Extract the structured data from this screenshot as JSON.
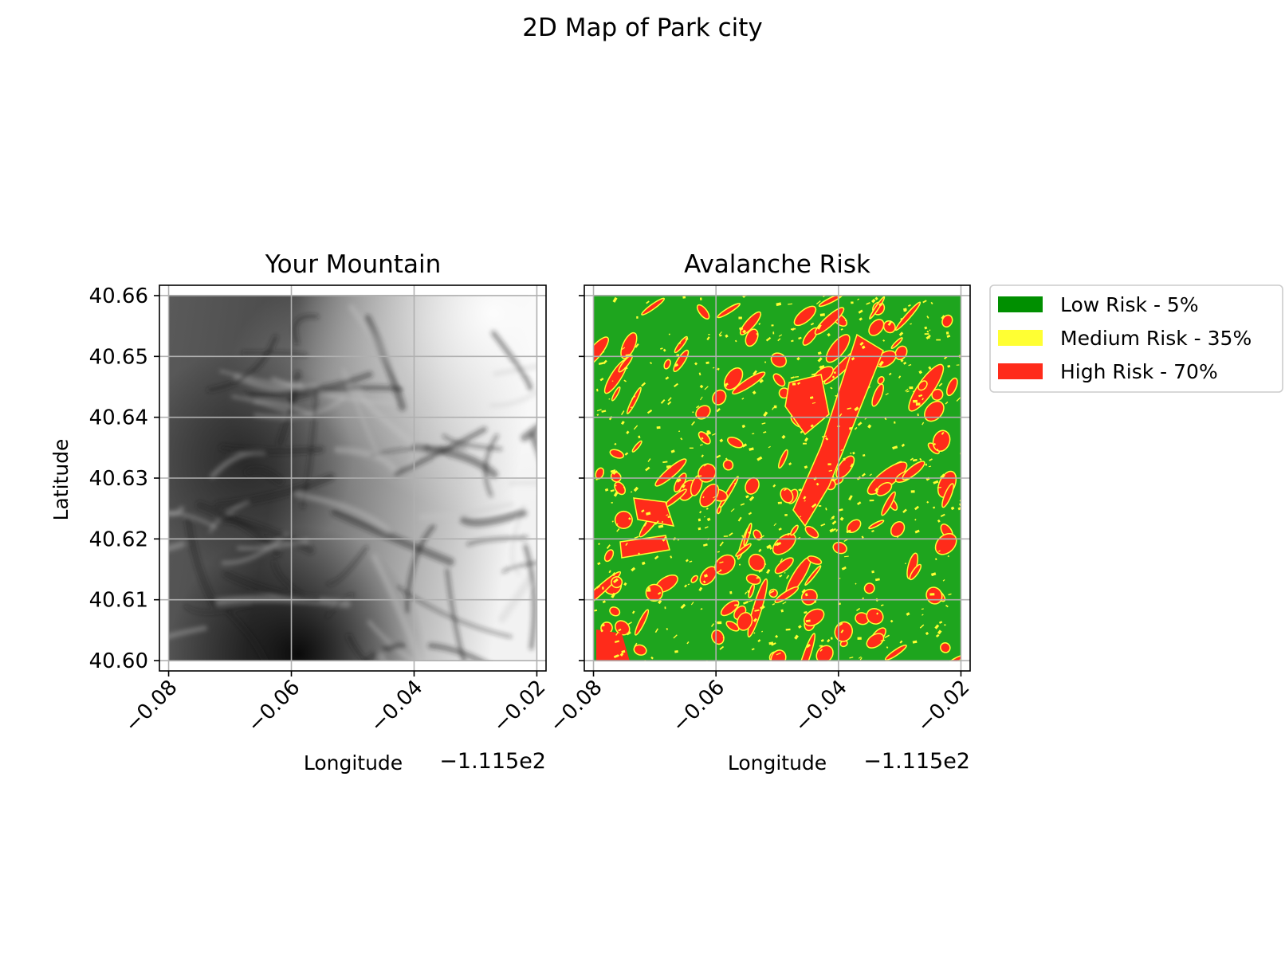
{
  "figure": {
    "suptitle": "2D Map of Park city"
  },
  "chart_data": [
    {
      "type": "heatmap",
      "title": "Your Mountain",
      "xlabel": "Longitude",
      "ylabel": "Latitude",
      "x_offset_label": "−1.115e2",
      "xlim": [
        -0.0815,
        -0.0185
      ],
      "ylim": [
        40.5983,
        40.6617
      ],
      "extent": {
        "x": [
          -0.08,
          -0.02
        ],
        "y": [
          40.6,
          40.66
        ]
      },
      "x_ticks": [
        {
          "value": -0.08,
          "label": "−0.08"
        },
        {
          "value": -0.06,
          "label": "−0.06"
        },
        {
          "value": -0.04,
          "label": "−0.04"
        },
        {
          "value": -0.02,
          "label": "−0.02"
        }
      ],
      "y_ticks": [
        {
          "value": 40.6,
          "label": "40.60"
        },
        {
          "value": 40.61,
          "label": "40.61"
        },
        {
          "value": 40.62,
          "label": "40.62"
        },
        {
          "value": 40.63,
          "label": "40.63"
        },
        {
          "value": 40.64,
          "label": "40.64"
        },
        {
          "value": 40.65,
          "label": "40.65"
        },
        {
          "value": 40.66,
          "label": "40.66"
        }
      ],
      "grid": true,
      "colormap": "gray"
    },
    {
      "type": "heatmap",
      "title": "Avalanche Risk",
      "xlabel": "Longitude",
      "x_offset_label": "−1.115e2",
      "xlim": [
        -0.0815,
        -0.0185
      ],
      "ylim": [
        40.5983,
        40.6617
      ],
      "extent": {
        "x": [
          -0.08,
          -0.02
        ],
        "y": [
          40.6,
          40.66
        ]
      },
      "x_ticks": [
        {
          "value": -0.08,
          "label": "−0.08"
        },
        {
          "value": -0.06,
          "label": "−0.06"
        },
        {
          "value": -0.04,
          "label": "−0.04"
        },
        {
          "value": -0.02,
          "label": "−0.02"
        }
      ],
      "y_ticks": [
        40.6,
        40.61,
        40.62,
        40.63,
        40.64,
        40.65,
        40.66
      ],
      "grid": true,
      "legend_position": "outside-right",
      "legend": [
        {
          "label": "Low Risk - 5%",
          "color": "#008f00"
        },
        {
          "label": "Medium Risk - 35%",
          "color": "#ffff33"
        },
        {
          "label": "High Risk - 70%",
          "color": "#ff2b1a"
        }
      ],
      "base_color": "#1ea51e"
    }
  ]
}
